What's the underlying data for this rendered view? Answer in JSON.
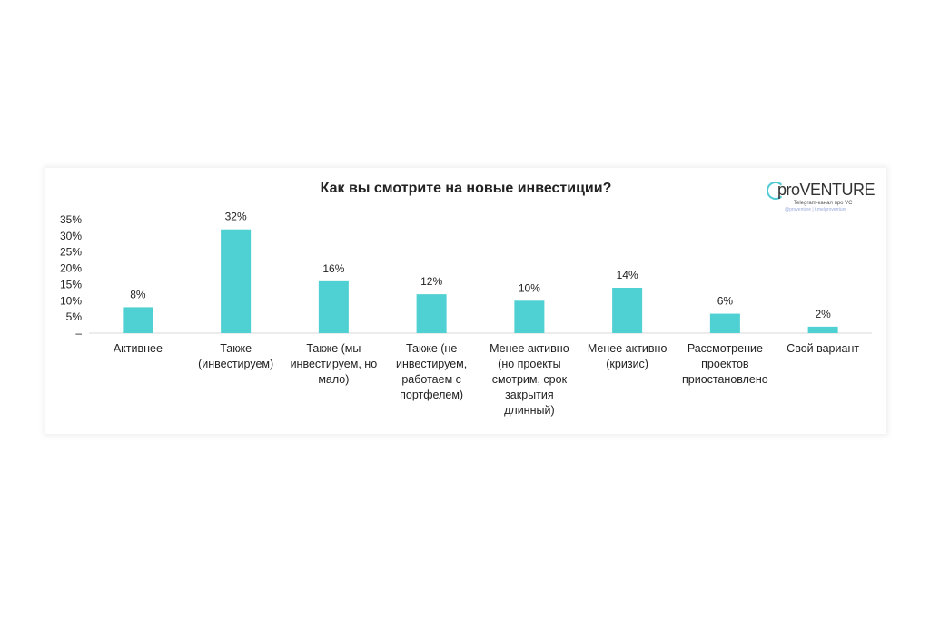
{
  "chart_data": {
    "type": "bar",
    "title": "Как вы смотрите на новые инвестиции?",
    "categories": [
      "Активнее",
      "Также (инвестируем)",
      "Также (мы инвестируем, но мало)",
      "Также (не инвестируем, работаем с портфелем)",
      "Менее активно (но проекты смотрим, срок закрытия длинный)",
      "Менее активно (кризис)",
      "Рассмотрение проектов приостановлено",
      "Свой вариант"
    ],
    "values": [
      8,
      32,
      16,
      12,
      10,
      14,
      6,
      2
    ],
    "value_labels": [
      "8%",
      "32%",
      "16%",
      "12%",
      "10%",
      "14%",
      "6%",
      "2%"
    ],
    "y_ticks": [
      "35%",
      "30%",
      "25%",
      "20%",
      "15%",
      "10%",
      "5%",
      "–"
    ],
    "ylim": [
      0,
      35
    ],
    "bar_color": "#4fd0d3",
    "grid": false,
    "legend": "none"
  },
  "logo": {
    "brand": "proVENTURE",
    "sub": "Telegram-канал про VC",
    "sub2": "@proventure | t.me/proventure"
  }
}
